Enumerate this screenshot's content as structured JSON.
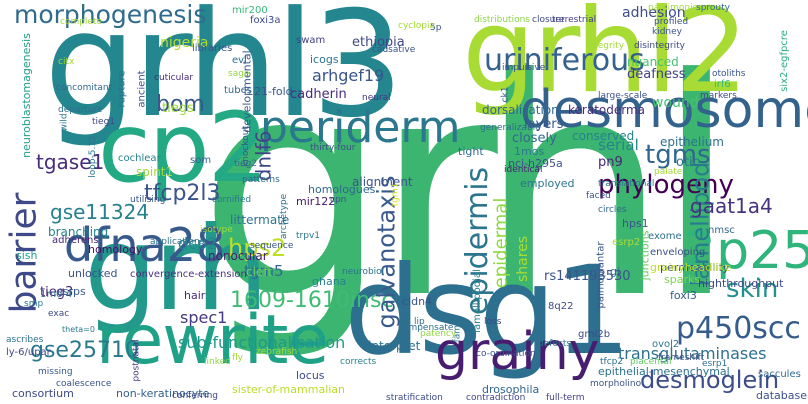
{
  "words": [
    {
      "t": "grhl",
      "c": "#3cb571"
    },
    {
      "t": "grhl3",
      "c": "#24868e"
    },
    {
      "t": "grhl2",
      "c": "#a8db34"
    },
    {
      "t": "dsg1",
      "c": "#2d6f8e"
    },
    {
      "t": "grh",
      "c": "#22998b"
    },
    {
      "t": "cp2",
      "c": "#23a983"
    },
    {
      "t": "rewrite",
      "c": "#1fa187"
    },
    {
      "t": "desmosomes",
      "c": "#33628d"
    },
    {
      "t": "periderm",
      "c": "#2a778e"
    },
    {
      "t": "dfna28",
      "c": "#38598c"
    },
    {
      "t": "barrier",
      "c": "#3e4989"
    },
    {
      "t": "grainy",
      "c": "#481d6f"
    },
    {
      "t": "2p25",
      "c": "#2fb47c"
    },
    {
      "t": "morphogenesis",
      "c": "#2f6b8e"
    },
    {
      "t": "p450scc",
      "c": "#365c8d"
    },
    {
      "t": "desmoglein",
      "c": "#3d4d8a"
    },
    {
      "t": "tfcp2l3",
      "c": "#3b528b"
    },
    {
      "t": "1609-1610insc",
      "c": "#3fbc73"
    },
    {
      "t": "epidermis",
      "c": "#2b758e"
    },
    {
      "t": "galvanotaxis",
      "c": "#38598c"
    },
    {
      "t": "phylogeny",
      "c": "#440154"
    },
    {
      "t": "uriniferous",
      "c": "#34618d"
    },
    {
      "t": "skin",
      "c": "#21918c"
    },
    {
      "t": "tgms",
      "c": "#31678e"
    },
    {
      "t": "bom",
      "c": "#38588c"
    },
    {
      "t": "hps2",
      "c": "#bddf26"
    },
    {
      "t": "lamellipod",
      "c": "#287c8e"
    },
    {
      "t": "gaat1a4",
      "c": "#46327e"
    },
    {
      "t": "gse11324",
      "c": "#26818e"
    },
    {
      "t": "gse25710",
      "c": "#2a788e"
    },
    {
      "t": "tgase1",
      "c": "#472d7b"
    },
    {
      "t": "sub-functionalisation",
      "c": "#1f988b"
    },
    {
      "t": "transglutaminases",
      "c": "#2c718e"
    },
    {
      "t": "dnlf6",
      "c": "#3f4788"
    },
    {
      "t": "epidermal",
      "c": "#8fd744"
    },
    {
      "t": "dcp2",
      "c": "#25858e"
    },
    {
      "t": "spec1",
      "c": "#443983"
    },
    {
      "t": "tgm5",
      "c": "#31688e"
    },
    {
      "t": "arhgef19",
      "c": "#3a548c"
    },
    {
      "t": "nigeria",
      "c": "#b5de2b"
    },
    {
      "t": "ethiopia",
      "c": "#3f4889"
    },
    {
      "t": "adhesion",
      "c": "#3e4c8a"
    },
    {
      "t": "nuanced",
      "c": "#48c16e"
    },
    {
      "t": "deafness",
      "c": "#424086"
    },
    {
      "t": "wound",
      "c": "#46c06f"
    },
    {
      "t": "tiegs",
      "c": "#9dd93b"
    },
    {
      "t": "tieg3",
      "c": "#482475"
    },
    {
      "t": "spint1",
      "c": "#a2da37"
    },
    {
      "t": "dorsalisation",
      "c": "#31678e"
    },
    {
      "t": "keratoderma",
      "c": "#472d7b"
    },
    {
      "t": "closely",
      "c": "#31688e"
    },
    {
      "t": "layers",
      "c": "#3a548c"
    },
    {
      "t": "cadherin",
      "c": "#472c7a"
    },
    {
      "t": "serial",
      "c": "#25848e"
    },
    {
      "t": "pn9",
      "c": "#482475"
    },
    {
      "t": "conserved",
      "c": "#26818e"
    },
    {
      "t": "epithelium",
      "c": "#2d708e"
    },
    {
      "t": "otic",
      "c": "#2b748e"
    },
    {
      "t": "branching",
      "c": "#25838e"
    },
    {
      "t": "homology",
      "c": "#471063"
    },
    {
      "t": "alignment",
      "c": "#3b528b"
    },
    {
      "t": "homologues",
      "c": "#31688e"
    },
    {
      "t": "mir122",
      "c": "#48186a"
    },
    {
      "t": "littermate",
      "c": "#2c728e"
    },
    {
      "t": "nonocular",
      "c": "#481b6d"
    },
    {
      "t": "cleft",
      "c": "#6ccd5a"
    },
    {
      "t": "unlocked",
      "c": "#3b528b"
    },
    {
      "t": "esrps",
      "c": "#39568c"
    },
    {
      "t": "hair",
      "c": "#472c7a"
    },
    {
      "t": "ghana",
      "c": "#26828e"
    },
    {
      "t": "shares",
      "c": "#addc30"
    },
    {
      "t": "sish",
      "c": "#1f9e89"
    },
    {
      "t": "gj",
      "c": "#2e6d8e"
    },
    {
      "t": "sparks",
      "c": "#7fd34e"
    },
    {
      "t": "foxi3",
      "c": "#365c8d"
    },
    {
      "t": "permeability",
      "c": "#3e4989"
    },
    {
      "t": "highthroughput",
      "c": "#3e4a89"
    },
    {
      "t": "rs141193530",
      "c": "#3a538b"
    },
    {
      "t": "cldn4",
      "c": "#3b518b"
    },
    {
      "t": "interpret",
      "c": "#2c728e"
    },
    {
      "t": "locus",
      "c": "#3e4a89"
    },
    {
      "t": "drosophila",
      "c": "#31668e"
    },
    {
      "t": "epithelial-mesenchymal",
      "c": "#2d718e"
    },
    {
      "t": "sister-of-mammalian",
      "c": "#b8de29"
    },
    {
      "t": "non-keratinocyte",
      "c": "#35608d"
    },
    {
      "t": "consortium",
      "c": "#3e4989"
    },
    {
      "t": "database",
      "c": "#3b528b"
    },
    {
      "t": "grainyheadlike",
      "c": "#bddf26"
    },
    {
      "t": "exome",
      "c": "#2d708e"
    },
    {
      "t": "enveloping",
      "c": "#3c4f8a"
    },
    {
      "t": "junctions",
      "c": "#65cb5e"
    },
    {
      "t": "nmsc",
      "c": "#31678e"
    },
    {
      "t": "hps1",
      "c": "#3a548c"
    },
    {
      "t": "esrp2",
      "c": "#a8db34"
    },
    {
      "t": "employed",
      "c": "#2b748e"
    },
    {
      "t": "nci-h295a",
      "c": "#3b528b"
    },
    {
      "t": "1mos",
      "c": "#2a788e"
    },
    {
      "t": "tight",
      "c": "#2e6e8e"
    },
    {
      "t": "21-fold",
      "c": "#3a538b"
    },
    {
      "t": "icogs",
      "c": "#2b748e"
    },
    {
      "t": "developmental",
      "c": "#38588c"
    },
    {
      "t": "swam",
      "c": "#414487"
    },
    {
      "t": "evl",
      "c": "#2c718e"
    },
    {
      "t": "foxi3a",
      "c": "#3e4a89"
    },
    {
      "t": "mir200",
      "c": "#35b779"
    },
    {
      "t": "libraries",
      "c": "#3a548c"
    },
    {
      "t": "tubes",
      "c": "#31678e"
    },
    {
      "t": "rupture",
      "c": "#2d708e"
    },
    {
      "t": "ancient",
      "c": "#39568c"
    },
    {
      "t": "cochlear",
      "c": "#26828e"
    },
    {
      "t": "som",
      "c": "#33638d"
    },
    {
      "t": "adherens",
      "c": "#482878"
    },
    {
      "t": "irf6",
      "c": "#37b878"
    },
    {
      "t": "six2-egfpcre",
      "c": "#29af7f"
    },
    {
      "t": "neuroblastomagenesis",
      "c": "#1fa088"
    },
    {
      "t": "lamellipodial",
      "c": "#26828e"
    },
    {
      "t": "palmoplantar",
      "c": "#38588c"
    },
    {
      "t": "grhl2b",
      "c": "#3f4889"
    },
    {
      "t": "8q22",
      "c": "#3e4c8a"
    },
    {
      "t": "ly-6/upar",
      "c": "#3f4788"
    },
    {
      "t": "1mo-4",
      "c": "#2d708e"
    },
    {
      "t": "theta=0",
      "c": "#29788e"
    },
    {
      "t": "convergence-extension",
      "c": "#46337e"
    },
    {
      "t": "ovol2",
      "c": "#2b758e"
    },
    {
      "t": "saccules",
      "c": "#31688e"
    },
    {
      "t": "esrp1",
      "c": "#2e6e8e"
    },
    {
      "t": "frameshift",
      "c": "#3d4e8a"
    },
    {
      "t": "tfcp2",
      "c": "#2e6d8e"
    },
    {
      "t": "morpholino",
      "c": "#3a548c"
    },
    {
      "t": "placental",
      "c": "#5ec962"
    },
    {
      "t": "co-ordination",
      "c": "#3b528b"
    },
    {
      "t": "defects",
      "c": "#2a778e"
    },
    {
      "t": "stratification",
      "c": "#3e4c8a"
    },
    {
      "t": "contradiction",
      "c": "#414487"
    },
    {
      "t": "full-term",
      "c": "#433e85"
    },
    {
      "t": "conferring",
      "c": "#3f4788"
    },
    {
      "t": "missing",
      "c": "#38598c"
    },
    {
      "t": "coalescence",
      "c": "#3a538b"
    },
    {
      "t": "postnatal",
      "c": "#443983"
    },
    {
      "t": "linked",
      "c": "#8bd646"
    },
    {
      "t": "fly",
      "c": "#a5db36"
    },
    {
      "t": "zebrafish",
      "c": "#a0da39"
    },
    {
      "t": "corrects",
      "c": "#26818e"
    },
    {
      "t": "compensate",
      "c": "#2d708e"
    },
    {
      "t": "lip",
      "c": "#2e6e8e"
    },
    {
      "t": "loss",
      "c": "#3f4889"
    },
    {
      "t": "family",
      "c": "#2a788e"
    },
    {
      "t": "patency",
      "c": "#8fd744"
    },
    {
      "t": "exac",
      "c": "#3e4989"
    },
    {
      "t": "smp",
      "c": "#2a788e"
    },
    {
      "t": "ascribes",
      "c": "#2d708e"
    },
    {
      "t": "circles",
      "c": "#31678e"
    },
    {
      "t": "faced",
      "c": "#3b528b"
    },
    {
      "t": "identical",
      "c": "#481f70"
    },
    {
      "t": "palate",
      "c": "#a5db36"
    },
    {
      "t": "translational",
      "c": "#2a778e"
    },
    {
      "t": "neurobiol",
      "c": "#2b748e"
    },
    {
      "t": "sequence",
      "c": "#3a548c"
    },
    {
      "t": "applications",
      "c": "#2d708e"
    },
    {
      "t": "archetype",
      "c": "#2c718e"
    },
    {
      "t": "cornified",
      "c": "#2b758e"
    },
    {
      "t": "patterns",
      "c": "#31668e"
    },
    {
      "t": "utilising",
      "c": "#39568c"
    },
    {
      "t": "tieg2",
      "c": "#31688e"
    },
    {
      "t": "thirty-four",
      "c": "#3e4c8a"
    },
    {
      "t": "neural",
      "c": "#443983"
    },
    {
      "t": "generalizable",
      "c": "#2e6d8e"
    },
    {
      "t": "ck1",
      "c": "#3a548c"
    },
    {
      "t": "impulsive",
      "c": "#39568c"
    },
    {
      "t": "large-scale",
      "c": "#3b528b"
    },
    {
      "t": "markers",
      "c": "#3e4a89"
    },
    {
      "t": "otoliths",
      "c": "#3a548c"
    },
    {
      "t": "integrity",
      "c": "#a2da37"
    },
    {
      "t": "disintegrity",
      "c": "#3f4788"
    },
    {
      "t": "kidney",
      "c": "#39568c"
    },
    {
      "t": "profiled",
      "c": "#3b528b"
    },
    {
      "t": "parsimonious",
      "c": "#a5db36"
    },
    {
      "t": "sprouty",
      "c": "#2e6d8e"
    },
    {
      "t": "closure",
      "c": "#3e4a89"
    },
    {
      "t": "terrestrial",
      "c": "#433e85"
    },
    {
      "t": "distributions",
      "c": "#8bd646"
    },
    {
      "t": "5p",
      "c": "#3b528b"
    },
    {
      "t": "cyclopia",
      "c": "#a5db36"
    },
    {
      "t": "causative",
      "c": "#3a538b"
    },
    {
      "t": "sage",
      "c": "#8fd744"
    },
    {
      "t": "cuticular",
      "c": "#472d7b"
    },
    {
      "t": "complete",
      "c": "#a0da39"
    },
    {
      "t": "citx",
      "c": "#a2da37"
    },
    {
      "t": "concomitant",
      "c": "#31688e"
    },
    {
      "t": "departure",
      "c": "#2c728e"
    },
    {
      "t": "wild",
      "c": "#2a788e"
    },
    {
      "t": "tieg1",
      "c": "#3f4788"
    },
    {
      "t": "knockout",
      "c": "#3a548c"
    },
    {
      "t": "isotype",
      "c": "#a0da39"
    },
    {
      "t": "trpv1",
      "c": "#2a788e"
    },
    {
      "t": "tgm1",
      "c": "#d2e21b"
    },
    {
      "t": "cpn",
      "c": "#3e4c8a"
    },
    {
      "t": "loop-5.12",
      "c": "#2a788e"
    }
  ]
}
